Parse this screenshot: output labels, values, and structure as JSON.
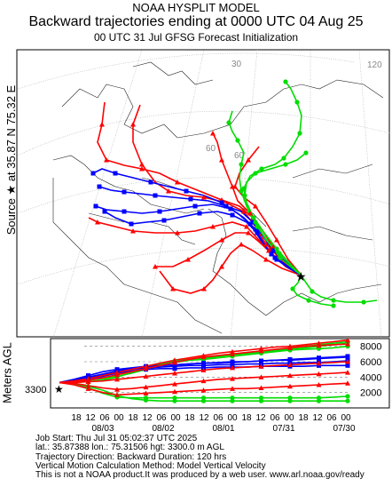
{
  "header": {
    "title": "NOAA HYSPLIT MODEL",
    "subtitle": "Backward trajectories ending at 0000 UTC 04 Aug 25",
    "subtitle2": "00 UTC 31 Jul    GFSG  Forecast Initialization"
  },
  "side": {
    "source_label": "Source ★ at   35.87 N   75.32 E",
    "height_label": "Meters AGL"
  },
  "map": {
    "graticule_labels": [
      "30",
      "120",
      "60",
      "60"
    ],
    "source_marker": "★"
  },
  "chart_data": {
    "type": "line",
    "title": "Backward trajectories ending at 0000 UTC 04 Aug 25",
    "ylabel": "Meters AGL",
    "start_height_label": "3300",
    "ylim": [
      0,
      9000
    ],
    "yticks": [
      2000,
      4000,
      6000,
      8000
    ],
    "x_tick_labels": [
      "18",
      "12",
      "06",
      "00",
      "18",
      "12",
      "06",
      "00",
      "18",
      "12",
      "06",
      "00",
      "18",
      "12",
      "06",
      "00",
      "18",
      "12",
      "06",
      "00"
    ],
    "x_date_labels": [
      "08/03",
      "08/02",
      "08/01",
      "07/31",
      "07/30"
    ],
    "series": [
      {
        "color": "#00dd00",
        "values": [
          3300,
          3500,
          3800,
          4200,
          4600,
          5000,
          5400,
          5800,
          6100,
          6300,
          6500,
          6700,
          6800,
          7000,
          7200,
          7400,
          7600,
          7800,
          8000,
          8200,
          8400
        ]
      },
      {
        "color": "#00dd00",
        "values": [
          3300,
          3400,
          3600,
          3800,
          4100,
          4500,
          5000,
          5500,
          5900,
          6200,
          6400,
          6600,
          6900,
          7100,
          7300,
          7500,
          7800,
          8000,
          8200,
          8400,
          8600
        ]
      },
      {
        "color": "#00dd00",
        "values": [
          3300,
          3200,
          2800,
          2300,
          1600,
          1200,
          1000,
          900,
          900,
          900,
          900,
          900,
          900,
          900,
          900,
          900,
          900,
          900,
          900,
          900,
          900
        ]
      },
      {
        "color": "#00dd00",
        "values": [
          3300,
          3100,
          2600,
          1900,
          1400,
          1300,
          1300,
          1300,
          1300,
          1300,
          1300,
          1300,
          1300,
          1300,
          1300,
          1300,
          1300,
          1300,
          1300,
          1400,
          1500
        ]
      },
      {
        "color": "#00dd00",
        "values": [
          3300,
          3300,
          3400,
          3600,
          4000,
          4600,
          5200,
          5700,
          6000,
          6200,
          6300,
          6500,
          6700,
          6900,
          7100,
          7300,
          7500,
          7600,
          7700,
          7800,
          8000
        ]
      },
      {
        "color": "#0000ff",
        "values": [
          3300,
          3500,
          3900,
          4300,
          4700,
          5000,
          5200,
          5300,
          5400,
          5500,
          5500,
          5600,
          5600,
          5700,
          5700,
          5800,
          5800,
          5900,
          5900,
          6000,
          6100
        ]
      },
      {
        "color": "#0000ff",
        "values": [
          3300,
          3600,
          4000,
          4400,
          4800,
          5100,
          5300,
          5500,
          5600,
          5700,
          5800,
          5900,
          6000,
          6000,
          6100,
          6200,
          6200,
          6300,
          6400,
          6500,
          6600
        ]
      },
      {
        "color": "#0000ff",
        "values": [
          3300,
          3700,
          4200,
          4700,
          5000,
          5200,
          5400,
          5500,
          5600,
          5700,
          5800,
          5800,
          5900,
          6000,
          6100,
          6200,
          6300,
          6400,
          6500,
          6600,
          6700
        ]
      },
      {
        "color": "#0000ff",
        "values": [
          3300,
          3400,
          3700,
          4100,
          4500,
          4800,
          5000,
          5100,
          5100,
          5200,
          5200,
          5300,
          5300,
          5300,
          5400,
          5400,
          5400,
          5400,
          5500,
          5500,
          5500
        ]
      },
      {
        "color": "#ff0000",
        "values": [
          3300,
          3500,
          3800,
          4200,
          4600,
          5000,
          5400,
          5800,
          6200,
          6500,
          6800,
          7100,
          7300,
          7500,
          7700,
          7900,
          8000,
          8200,
          8400,
          8600,
          8800
        ]
      },
      {
        "color": "#ff0000",
        "values": [
          3300,
          3400,
          3600,
          3900,
          4300,
          4700,
          5100,
          5500,
          5900,
          6300,
          6600,
          6800,
          7000,
          7200,
          7400,
          7600,
          7800,
          8000,
          8100,
          8200,
          8300
        ]
      },
      {
        "color": "#ff0000",
        "values": [
          3300,
          3300,
          3400,
          3500,
          3700,
          3900,
          4100,
          4300,
          4500,
          4700,
          4900,
          5100,
          5200,
          5300,
          5400,
          5500,
          5600,
          5700,
          5800,
          5900,
          6000
        ]
      },
      {
        "color": "#ff0000",
        "values": [
          3300,
          3200,
          2900,
          2600,
          2400,
          2500,
          2700,
          2900,
          3100,
          3300,
          3500,
          3700,
          3800,
          3900,
          4000,
          4100,
          4200,
          4300,
          4400,
          4500,
          4600
        ]
      },
      {
        "color": "#ff0000",
        "values": [
          3300,
          3000,
          2500,
          2000,
          1700,
          1800,
          1900,
          2000,
          2100,
          2200,
          2300,
          2400,
          2500,
          2500,
          2600,
          2700,
          2800,
          2900,
          3000,
          3100,
          3200
        ]
      }
    ]
  },
  "footer": {
    "line1": "Job Start: Thu Jul 31 05:02:37 UTC 2025",
    "line2": "lat.: 35.87388   lon.: 75.31506   hgt: 3300.0 m AGL",
    "line3": "Trajectory Direction: Backward       Duration: 120 hrs",
    "line4": "Vertical Motion Calculation Method: Model Vertical Velocity",
    "line5": "This is not a NOAA product.It was produced by a web user.  www.arl.noaa.gov/ready"
  }
}
